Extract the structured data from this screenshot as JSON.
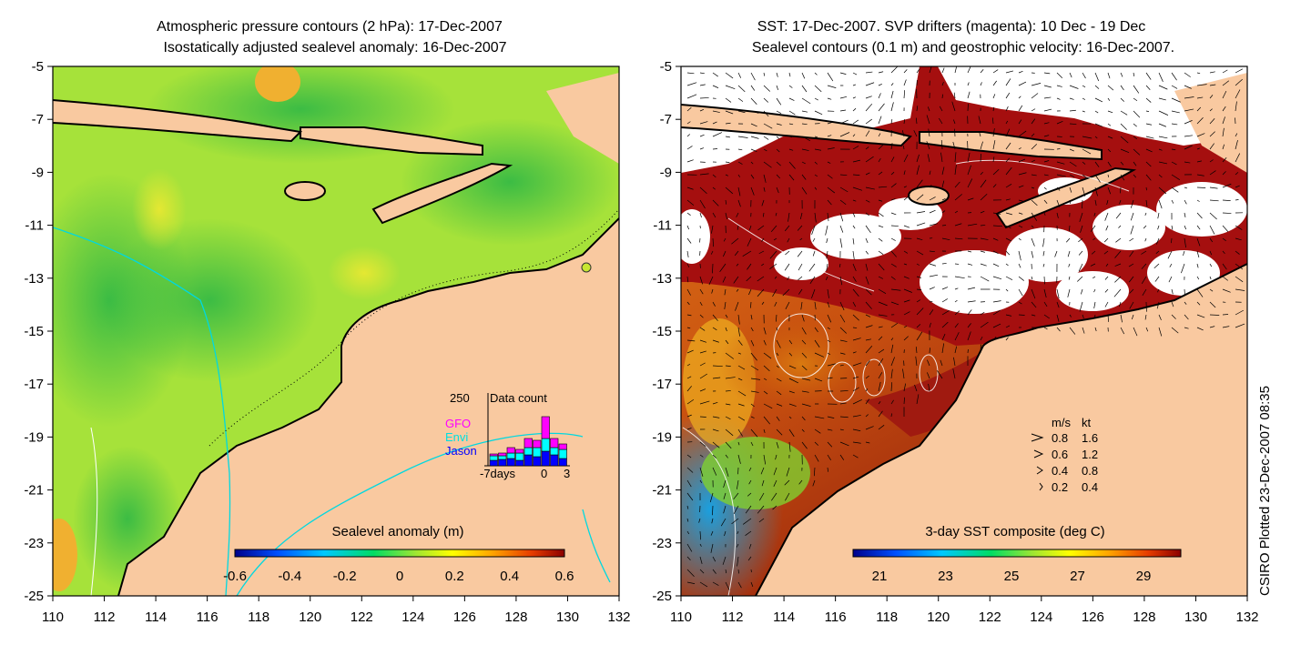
{
  "left_panel": {
    "title_line1": "Atmospheric pressure contours (2 hPa): 17-Dec-2007",
    "title_line2": "Isostatically adjusted sealevel anomaly: 16-Dec-2007",
    "colorbar": {
      "label": "Sealevel anomaly (m)",
      "ticks": [
        "-0.6",
        "-0.4",
        "-0.2",
        "0",
        "0.2",
        "0.4",
        "0.6"
      ],
      "colors": [
        "#00008b",
        "#0050ff",
        "#00c8ff",
        "#00dc64",
        "#a0e632",
        "#ffff00",
        "#ffa500",
        "#e63c00",
        "#8b0000"
      ]
    },
    "data_count_inset": {
      "ymax_label": "250",
      "title": "Data count",
      "legend": [
        "GFO",
        "Envi",
        "Jason"
      ],
      "legend_colors": [
        "#ff00ff",
        "#00ffff",
        "#0000ff"
      ],
      "x_label": "-7days",
      "x_ticks": [
        "0",
        "3"
      ]
    }
  },
  "right_panel": {
    "title_line1": "SST: 17-Dec-2007. SVP drifters (magenta): 10 Dec - 19 Dec",
    "title_line2": "Sealevel contours (0.1 m) and geostrophic velocity: 16-Dec-2007.",
    "colorbar": {
      "label": "3-day SST composite (deg C)",
      "ticks": [
        "21",
        "23",
        "25",
        "27",
        "29"
      ],
      "colors": [
        "#00008b",
        "#0050ff",
        "#00c8ff",
        "#00dc64",
        "#a0e632",
        "#ffff00",
        "#ffa500",
        "#e63c00",
        "#8b0000"
      ]
    },
    "velocity_key": {
      "header_ms": "m/s",
      "header_kt": "kt",
      "rows": [
        {
          "ms": "0.8",
          "kt": "1.6"
        },
        {
          "ms": "0.6",
          "kt": "1.2"
        },
        {
          "ms": "0.4",
          "kt": "0.8"
        },
        {
          "ms": "0.2",
          "kt": "0.4"
        }
      ]
    }
  },
  "axes": {
    "lon_ticks": [
      "110",
      "112",
      "114",
      "116",
      "118",
      "120",
      "122",
      "124",
      "126",
      "128",
      "130",
      "132"
    ],
    "lat_ticks": [
      "-5",
      "-7",
      "-9",
      "-11",
      "-13",
      "-15",
      "-17",
      "-19",
      "-21",
      "-23",
      "-25"
    ]
  },
  "credit": "CSIRO Plotted 23-Dec-2007 08:35",
  "colors": {
    "land": "#f9c9a0",
    "warm_sst": "#a50f0f",
    "cloud": "#ffffff",
    "sla_green": "#5fd23c"
  }
}
